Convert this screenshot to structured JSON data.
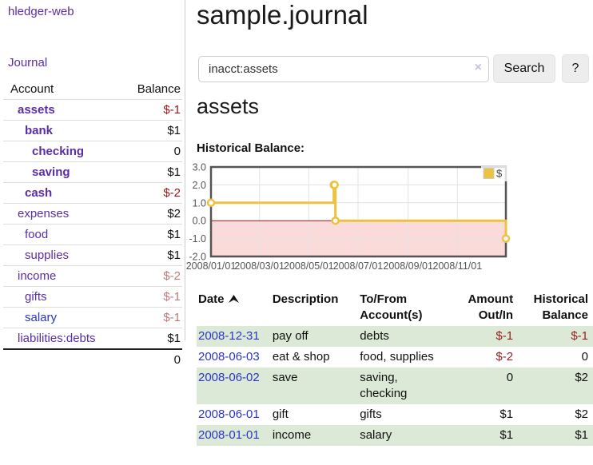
{
  "sidebar": {
    "app_title": "hledger-web",
    "journal_link": "Journal",
    "table": {
      "account_header": "Account",
      "balance_header": "Balance",
      "rows": [
        {
          "name": "assets",
          "balance": "$-1",
          "depth": 1,
          "bold": true,
          "negative": "strong",
          "link_style": "purple"
        },
        {
          "name": "bank",
          "balance": "$1",
          "depth": 2,
          "bold": true,
          "negative": "none",
          "link_style": "purple"
        },
        {
          "name": "checking",
          "balance": "0",
          "depth": 3,
          "bold": true,
          "negative": "none",
          "link_style": "purple"
        },
        {
          "name": "saving",
          "balance": "$1",
          "depth": 3,
          "bold": true,
          "negative": "none",
          "link_style": "purple"
        },
        {
          "name": "cash",
          "balance": "$-2",
          "depth": 2,
          "bold": true,
          "negative": "strong",
          "link_style": "purple"
        },
        {
          "name": "expenses",
          "balance": "$2",
          "depth": 1,
          "bold": false,
          "negative": "none",
          "link_style": "purple"
        },
        {
          "name": "food",
          "balance": "$1",
          "depth": 2,
          "bold": false,
          "negative": "none",
          "link_style": "purple"
        },
        {
          "name": "supplies",
          "balance": "$1",
          "depth": 2,
          "bold": false,
          "negative": "none",
          "link_style": "purple"
        },
        {
          "name": "income",
          "balance": "$-2",
          "depth": 1,
          "bold": false,
          "negative": "soft",
          "link_style": "purple"
        },
        {
          "name": "gifts",
          "balance": "$-1",
          "depth": 2,
          "bold": false,
          "negative": "soft",
          "link_style": "purple"
        },
        {
          "name": "salary",
          "balance": "$-1",
          "depth": 2,
          "bold": false,
          "negative": "soft",
          "link_style": "blue"
        },
        {
          "name": "liabilities:debts",
          "balance": "$1",
          "depth": 1,
          "bold": false,
          "negative": "none",
          "link_style": "purple"
        }
      ],
      "total": "0"
    }
  },
  "main": {
    "title": "sample.journal",
    "search": {
      "value": "inacct:assets",
      "clear_icon": "×",
      "button_label": "Search",
      "help_label": "?"
    },
    "account_heading": "assets",
    "section_label": "Historical Balance:"
  },
  "chart_data": {
    "type": "line",
    "step": true,
    "title": "Historical Balance of assets",
    "legend": [
      {
        "label": "$",
        "color": "#EDC240"
      }
    ],
    "x_dates": [
      "2008-01-01",
      "2008-06-01",
      "2008-06-02",
      "2008-06-03",
      "2008-12-31"
    ],
    "x_days": [
      0,
      152,
      153,
      154,
      365
    ],
    "values": [
      1,
      2,
      2,
      0,
      -1
    ],
    "x_range_days": [
      0,
      365
    ],
    "ylim": [
      -2,
      3
    ],
    "y_ticks": [
      "3.0",
      "2.0",
      "1.0",
      "0.0",
      "-1.0",
      "-2.0"
    ],
    "y_tick_values": [
      3,
      2,
      1,
      0,
      -1,
      -2
    ],
    "x_tick_labels": [
      "2008/01/01",
      "2008/03/01",
      "2008/05/01",
      "2008/07/01",
      "2008/09/01",
      "2008/11/01"
    ],
    "x_tick_days": [
      0,
      60,
      121,
      182,
      244,
      305
    ],
    "grid": true,
    "legend_position": "top-right",
    "negative_region_fill": "#fbdada",
    "zero_line_color": "#8b1a1a",
    "line_color": "#EDC240",
    "grid_color": "#e3e3e3",
    "border_color": "#545454",
    "tick_label_color": "#545454"
  },
  "register_table": {
    "headers": {
      "date": "Date",
      "description": "Description",
      "accounts": "To/From Account(s)",
      "amount": "Amount Out/In",
      "balance": "Historical Balance"
    },
    "rows": [
      {
        "date": "2008-12-31",
        "description": "pay off",
        "accounts": "debts",
        "amount": "$-1",
        "amount_negative": true,
        "balance": "$-1",
        "balance_negative": true
      },
      {
        "date": "2008-06-03",
        "description": "eat & shop",
        "accounts": "food, supplies",
        "amount": "$-2",
        "amount_negative": true,
        "balance": "0",
        "balance_negative": false
      },
      {
        "date": "2008-06-02",
        "description": "save",
        "accounts": "saving, checking",
        "amount": "0",
        "amount_negative": false,
        "balance": "$2",
        "balance_negative": false
      },
      {
        "date": "2008-06-01",
        "description": "gift",
        "accounts": "gifts",
        "amount": "$1",
        "amount_negative": false,
        "balance": "$2",
        "balance_negative": false
      },
      {
        "date": "2008-01-01",
        "description": "income",
        "accounts": "salary",
        "amount": "$1",
        "amount_negative": false,
        "balance": "$1",
        "balance_negative": false
      }
    ]
  },
  "colors": {
    "link_purple": "#5a2da5",
    "link_blue": "#2a35c8",
    "negative_strong": "#941616",
    "negative_soft": "#bb7a7a",
    "table_negative": "#962020",
    "stripe_green": "#dbe9d6",
    "chart_gold": "#EDC240"
  }
}
